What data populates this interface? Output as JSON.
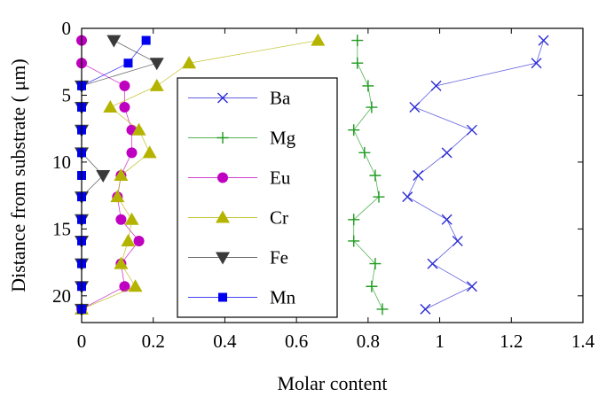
{
  "chart_data": {
    "type": "line",
    "title": "",
    "xlabel": "Molar content",
    "ylabel": "Distance from substrate ( μm)",
    "xlim": [
      0,
      1.4
    ],
    "ylim": [
      0,
      22
    ],
    "y_reversed": true,
    "x_ticks": [
      0,
      0.2,
      0.4,
      0.6,
      0.8,
      1,
      1.2,
      1.4
    ],
    "x_tick_labels": [
      "0",
      "0.2",
      "0.4",
      "0.6",
      "0.8",
      "1",
      "1.2",
      "1.4"
    ],
    "y_ticks": [
      0,
      5,
      10,
      15,
      20
    ],
    "y_tick_labels": [
      "0",
      "5",
      "10",
      "15",
      "20"
    ],
    "grid": false,
    "legend_position": "center-left",
    "series": [
      {
        "name": "Ba",
        "marker": "x",
        "color": "#2b2bd4",
        "points": [
          [
            1.29,
            0.9
          ],
          [
            1.27,
            2.6
          ],
          [
            0.99,
            4.3
          ],
          [
            0.93,
            5.9
          ],
          [
            1.09,
            7.6
          ],
          [
            1.02,
            9.3
          ],
          [
            0.94,
            11.0
          ],
          [
            0.91,
            12.6
          ],
          [
            1.02,
            14.3
          ],
          [
            1.05,
            15.9
          ],
          [
            0.98,
            17.6
          ],
          [
            1.09,
            19.3
          ],
          [
            0.96,
            21.0
          ]
        ]
      },
      {
        "name": "Mg",
        "marker": "+",
        "color": "#1f9a1f",
        "points": [
          [
            0.77,
            0.9
          ],
          [
            0.77,
            2.6
          ],
          [
            0.8,
            4.3
          ],
          [
            0.81,
            5.9
          ],
          [
            0.76,
            7.6
          ],
          [
            0.79,
            9.3
          ],
          [
            0.82,
            11.0
          ],
          [
            0.83,
            12.6
          ],
          [
            0.76,
            14.3
          ],
          [
            0.76,
            15.9
          ],
          [
            0.82,
            17.6
          ],
          [
            0.81,
            19.3
          ],
          [
            0.84,
            21.0
          ]
        ]
      },
      {
        "name": "Eu",
        "marker": "circle",
        "color": "#c000c0",
        "points": [
          [
            0.0,
            0.9
          ],
          [
            0.0,
            2.6
          ],
          [
            0.12,
            4.3
          ],
          [
            0.12,
            5.9
          ],
          [
            0.14,
            7.6
          ],
          [
            0.14,
            9.3
          ],
          [
            0.11,
            11.0
          ],
          [
            0.1,
            12.6
          ],
          [
            0.11,
            14.3
          ],
          [
            0.16,
            15.9
          ],
          [
            0.11,
            17.6
          ],
          [
            0.12,
            19.3
          ],
          [
            0.0,
            21.0
          ]
        ]
      },
      {
        "name": "Cr",
        "marker": "triangle-up",
        "color": "#b4b400",
        "points": [
          [
            0.66,
            0.9
          ],
          [
            0.3,
            2.6
          ],
          [
            0.21,
            4.3
          ],
          [
            0.08,
            5.9
          ],
          [
            0.16,
            7.6
          ],
          [
            0.19,
            9.3
          ],
          [
            0.11,
            11.0
          ],
          [
            0.1,
            12.6
          ],
          [
            0.14,
            14.3
          ],
          [
            0.13,
            15.9
          ],
          [
            0.11,
            17.6
          ],
          [
            0.15,
            19.3
          ],
          [
            0.0,
            21.0
          ]
        ]
      },
      {
        "name": "Fe",
        "marker": "triangle-down",
        "color": "#3a3a3a",
        "points": [
          [
            0.09,
            0.9
          ],
          [
            0.21,
            2.6
          ],
          [
            0.0,
            4.3
          ],
          [
            0.0,
            5.9
          ],
          [
            0.0,
            7.6
          ],
          [
            0.0,
            9.3
          ],
          [
            0.06,
            11.0
          ],
          [
            0.0,
            12.6
          ],
          [
            0.0,
            14.3
          ],
          [
            0.0,
            15.9
          ],
          [
            0.0,
            17.6
          ],
          [
            0.0,
            19.3
          ],
          [
            0.0,
            21.0
          ]
        ]
      },
      {
        "name": "Mn",
        "marker": "square",
        "color": "#0000ee",
        "points": [
          [
            0.18,
            0.9
          ],
          [
            0.13,
            2.6
          ],
          [
            0.0,
            4.3
          ],
          [
            0.0,
            5.9
          ],
          [
            0.0,
            7.6
          ],
          [
            0.0,
            9.3
          ],
          [
            0.0,
            11.0
          ],
          [
            0.0,
            12.6
          ],
          [
            0.0,
            14.3
          ],
          [
            0.0,
            15.9
          ],
          [
            0.0,
            17.6
          ],
          [
            0.0,
            19.3
          ],
          [
            0.0,
            21.0
          ]
        ]
      }
    ]
  }
}
